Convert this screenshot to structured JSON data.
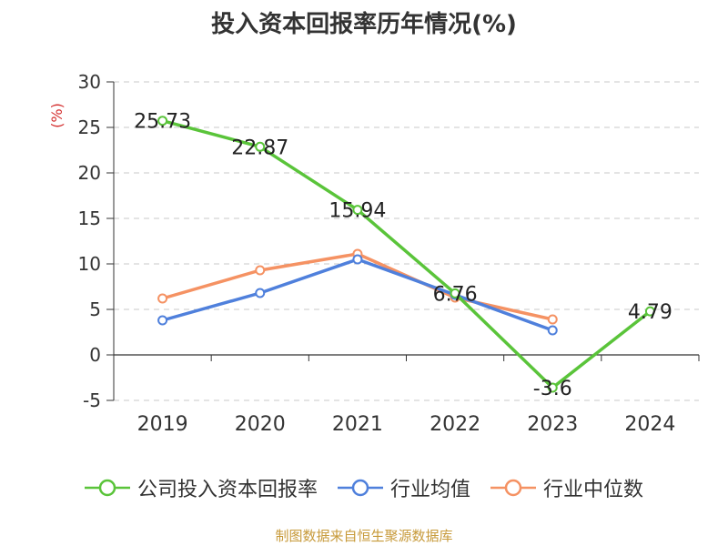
{
  "chart_data": {
    "type": "line",
    "title": "投入资本回报率历年情况(%)",
    "ylabel": "(%)",
    "xlabel": "",
    "categories": [
      "2019",
      "2020",
      "2021",
      "2022",
      "2023",
      "2024"
    ],
    "ylim": [
      -5,
      30
    ],
    "yticks": [
      -5,
      0,
      5,
      10,
      15,
      20,
      25,
      30
    ],
    "grid": true,
    "legend_position": "bottom",
    "series": [
      {
        "name": "公司投入资本回报率",
        "color": "#5ac43a",
        "values": [
          25.73,
          22.87,
          15.94,
          6.76,
          -3.6,
          4.79
        ],
        "labels": [
          "25.73",
          "22.87",
          "15.94",
          "6.76",
          "-3.6",
          "4.79"
        ]
      },
      {
        "name": "行业均值",
        "color": "#4f80dc",
        "values": [
          3.8,
          6.8,
          10.5,
          6.6,
          2.7,
          null
        ]
      },
      {
        "name": "行业中位数",
        "color": "#f59263",
        "values": [
          6.2,
          9.3,
          11.1,
          6.3,
          3.9,
          null
        ]
      }
    ]
  },
  "source": "制图数据来自恒生聚源数据库"
}
